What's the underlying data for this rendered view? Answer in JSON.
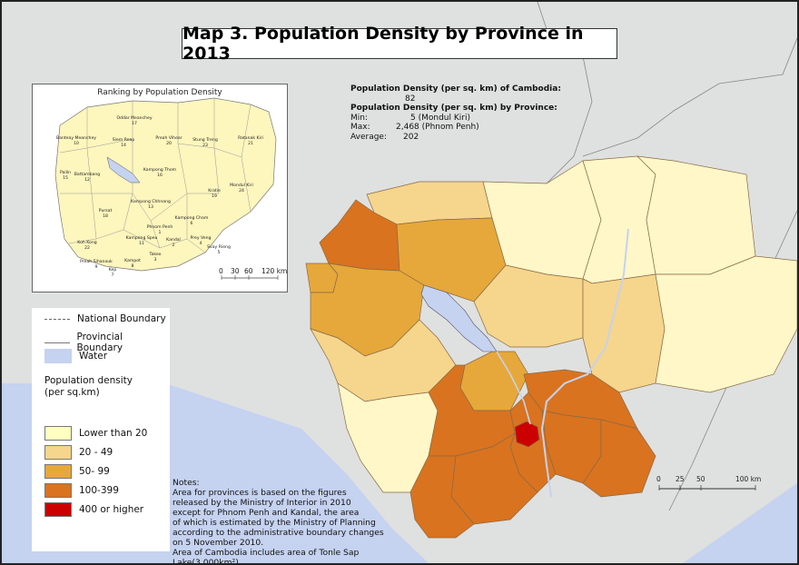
{
  "title": "Map 3. Population Density by Province in 2013",
  "stats": {
    "country_label": "Population Density (per sq. km) of Cambodia:",
    "country_value": "82",
    "province_label": "Population Density (per sq. km) by Province:",
    "min_label": "Min:",
    "min_value": "5 (Mondul Kiri)",
    "max_label": "Max:",
    "max_value": "2,468 (Phnom Penh)",
    "avg_label": "Average:",
    "avg_value": "202"
  },
  "inset": {
    "title": "Ranking by Population Density",
    "scale_labels": [
      "0",
      "30",
      "60",
      "120 km"
    ],
    "provinces": [
      {
        "name": "Oddar Meanchey",
        "rank": "17"
      },
      {
        "name": "Banteay Meanchey",
        "rank": "10"
      },
      {
        "name": "Siem Reap",
        "rank": "14"
      },
      {
        "name": "Preah Vihear",
        "rank": "20"
      },
      {
        "name": "Stung Treng",
        "rank": "23"
      },
      {
        "name": "Ratanak Kiri",
        "rank": "21"
      },
      {
        "name": "Pailin",
        "rank": "15"
      },
      {
        "name": "Battambang",
        "rank": "12"
      },
      {
        "name": "Kampong Thom",
        "rank": "16"
      },
      {
        "name": "Kratie",
        "rank": "19"
      },
      {
        "name": "Mondul Kiri",
        "rank": "24"
      },
      {
        "name": "Pursat",
        "rank": "18"
      },
      {
        "name": "Kampong Chhnang",
        "rank": "13"
      },
      {
        "name": "Kampong Cham",
        "rank": "6"
      },
      {
        "name": "Koh Kong",
        "rank": "22"
      },
      {
        "name": "Kampong Speu",
        "rank": "11"
      },
      {
        "name": "Phnom Penh",
        "rank": "1"
      },
      {
        "name": "Kandal",
        "rank": "2"
      },
      {
        "name": "Prey Veng",
        "rank": "4"
      },
      {
        "name": "Svay Rieng",
        "rank": "5"
      },
      {
        "name": "Takeo",
        "rank": "3"
      },
      {
        "name": "Kampot",
        "rank": "8"
      },
      {
        "name": "Preah Sihanouk",
        "rank": "9"
      },
      {
        "name": "Kep",
        "rank": "7"
      }
    ]
  },
  "legend": {
    "national_boundary": "National Boundary",
    "provincial_boundary": "Provincial Boundary",
    "water": "Water",
    "density_title_1": "Population density",
    "density_title_2": "(per sq.km)",
    "classes": [
      {
        "label": "Lower than 20",
        "color": "#ffffbf"
      },
      {
        "label": "20 - 49",
        "color": "#f6d58c"
      },
      {
        "label": "50- 99",
        "color": "#e6a83a"
      },
      {
        "label": "100-399",
        "color": "#d9731f"
      },
      {
        "label": "400 or higher",
        "color": "#cc0000"
      }
    ]
  },
  "colors": {
    "water": "#c5d2f0",
    "outside_land": "#dfe0e0",
    "lt20": "#fff7c8",
    "c20_49": "#f6d58c",
    "c50_99": "#e6a83a",
    "c100_399": "#d9731f",
    "c400": "#cc0000"
  },
  "main_scale_labels": [
    "0",
    "25",
    "50",
    "100 km"
  ],
  "notes": [
    "Notes:",
    "Area for provinces is based on the figures",
    "released by the Ministry of Interior in 2010",
    "except for Phnom Penh and Kandal, the area",
    "of which is estimated by the Ministry of Planning",
    "according to the administrative boundary changes",
    "on 5 November 2010.",
    "Area of Cambodia includes area of Tonle Sap Lake(3,000km²)."
  ]
}
